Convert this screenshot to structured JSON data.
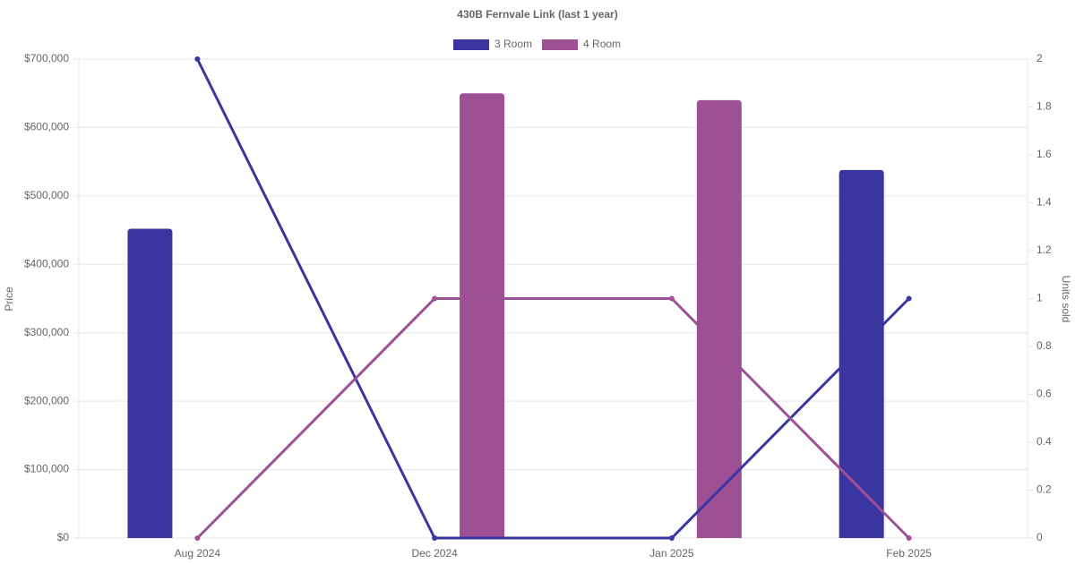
{
  "chart_data": {
    "type": "bar-line",
    "title": "430B Fernvale Link (last 1 year)",
    "categories": [
      "Aug 2024",
      "Dec 2024",
      "Jan 2025",
      "Feb 2025"
    ],
    "y_label": "Price",
    "y2_label": "Units sold",
    "series": [
      {
        "name": "3 Room",
        "color": "#3b35a1",
        "values": [
          452000,
          null,
          null,
          538000
        ],
        "units_sold": [
          2,
          0,
          0,
          1
        ]
      },
      {
        "name": "4 Room",
        "color": "#9e5095",
        "values": [
          null,
          650000,
          640000,
          null
        ],
        "units_sold": [
          0,
          1,
          1,
          0
        ]
      }
    ],
    "ylim": [
      0,
      700000
    ],
    "yticks": [
      {
        "value": 0,
        "label": "$0"
      },
      {
        "value": 100000,
        "label": "$100,000"
      },
      {
        "value": 200000,
        "label": "$200,000"
      },
      {
        "value": 300000,
        "label": "$300,000"
      },
      {
        "value": 400000,
        "label": "$400,000"
      },
      {
        "value": 500000,
        "label": "$500,000"
      },
      {
        "value": 600000,
        "label": "$600,000"
      },
      {
        "value": 700000,
        "label": "$700,000"
      }
    ],
    "y2lim": [
      0,
      2
    ],
    "y2ticks": [
      0,
      0.2,
      0.4,
      0.6,
      0.8,
      1,
      1.2,
      1.4,
      1.6,
      1.8,
      2
    ],
    "grid": true
  }
}
